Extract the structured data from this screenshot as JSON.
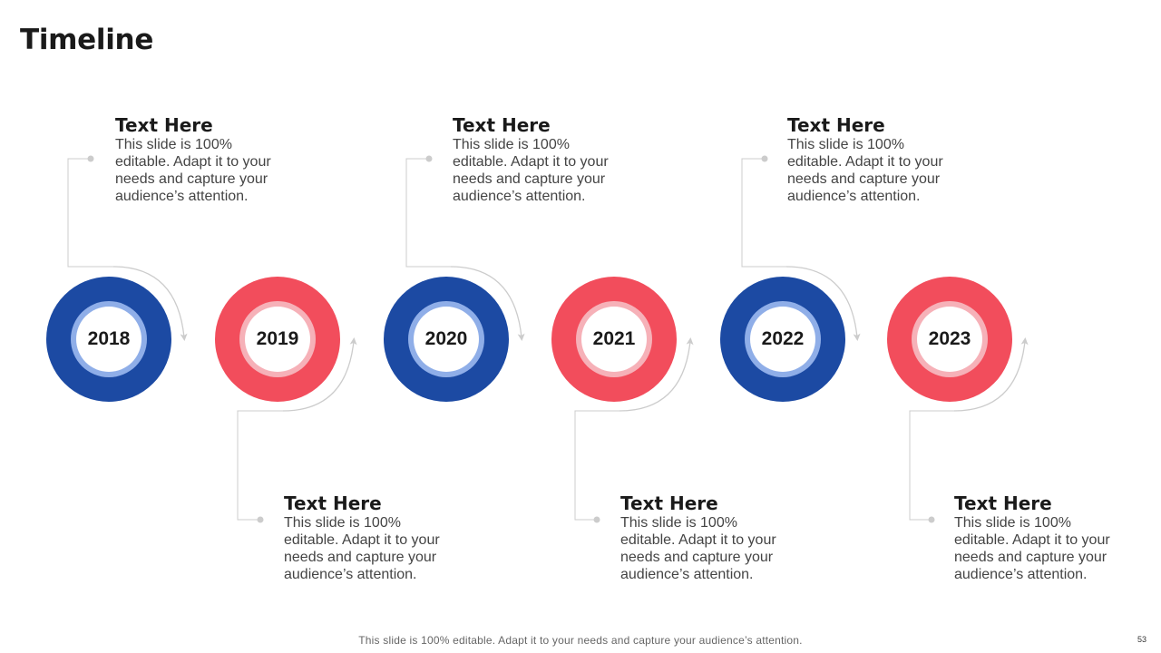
{
  "slide": {
    "title": "Timeline",
    "footer": "This slide is 100% editable. Adapt it to your needs and capture your audience’s attention.",
    "page_number": "53"
  },
  "colors": {
    "blue": "#1c4aa3",
    "red": "#f24d5c",
    "connector": "#cccccc"
  },
  "timeline": [
    {
      "year": "2018",
      "color": "blue",
      "heading": "Text Here",
      "text": "This slide is 100% editable. Adapt it to your needs and capture your audience’s attention."
    },
    {
      "year": "2019",
      "color": "red",
      "heading": "Text Here",
      "text": "This slide is 100% editable. Adapt it to your needs and capture your audience’s attention."
    },
    {
      "year": "2020",
      "color": "blue",
      "heading": "Text Here",
      "text": "This slide is 100% editable. Adapt it to your needs and capture your audience’s attention."
    },
    {
      "year": "2021",
      "color": "red",
      "heading": "Text Here",
      "text": "This slide is 100% editable. Adapt it to your needs and capture your audience’s attention."
    },
    {
      "year": "2022",
      "color": "blue",
      "heading": "Text Here",
      "text": "This slide is 100% editable. Adapt it to your needs and capture your audience’s attention."
    },
    {
      "year": "2023",
      "color": "red",
      "heading": "Text Here",
      "text": "This slide is 100% editable. Adapt it to your needs and capture your audience’s attention."
    }
  ]
}
